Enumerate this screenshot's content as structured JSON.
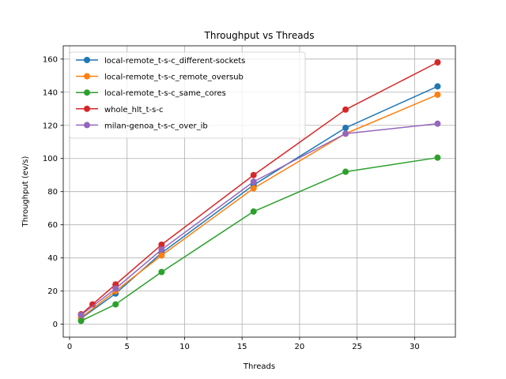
{
  "chart_data": {
    "type": "line",
    "title": "Throughput vs Threads",
    "xlabel": "Threads",
    "ylabel": "Throughput (ev/s)",
    "xlim": [
      -0.55,
      33.55
    ],
    "ylim": [
      -7.8,
      168.0
    ],
    "xticks": [
      0,
      5,
      10,
      15,
      20,
      25,
      30
    ],
    "yticks": [
      0,
      20,
      40,
      60,
      80,
      100,
      120,
      140,
      160
    ],
    "grid": true,
    "legend_position": "upper-left",
    "series": [
      {
        "name": "local-remote_t-s-c_different-sockets",
        "color": "#1f77b4",
        "x": [
          1,
          4,
          8,
          16,
          24,
          32
        ],
        "y": [
          3.5,
          18.5,
          43.0,
          84.0,
          118.5,
          143.5
        ]
      },
      {
        "name": "local-remote_t-s-c_remote_oversub",
        "color": "#ff7f0e",
        "x": [
          1,
          4,
          8,
          16,
          24,
          32
        ],
        "y": [
          4.0,
          20.0,
          41.5,
          82.0,
          115.0,
          138.5
        ]
      },
      {
        "name": "local-remote_t-s-c_same_cores",
        "color": "#2ca02c",
        "x": [
          1,
          4,
          8,
          16,
          24,
          32
        ],
        "y": [
          2.0,
          12.0,
          31.5,
          68.0,
          92.0,
          100.5
        ]
      },
      {
        "name": "whole_hlt_t-s-c",
        "color": "#d62728",
        "x": [
          1,
          2,
          4,
          8,
          16,
          24,
          32
        ],
        "y": [
          6.0,
          12.0,
          24.0,
          48.0,
          90.0,
          129.5,
          158.0
        ]
      },
      {
        "name": "milan-genoa_t-s-c_over_ib",
        "color": "#9467bd",
        "x": [
          1,
          4,
          8,
          16,
          24,
          32
        ],
        "y": [
          5.5,
          21.5,
          45.0,
          86.0,
          115.0,
          121.0
        ]
      }
    ]
  }
}
